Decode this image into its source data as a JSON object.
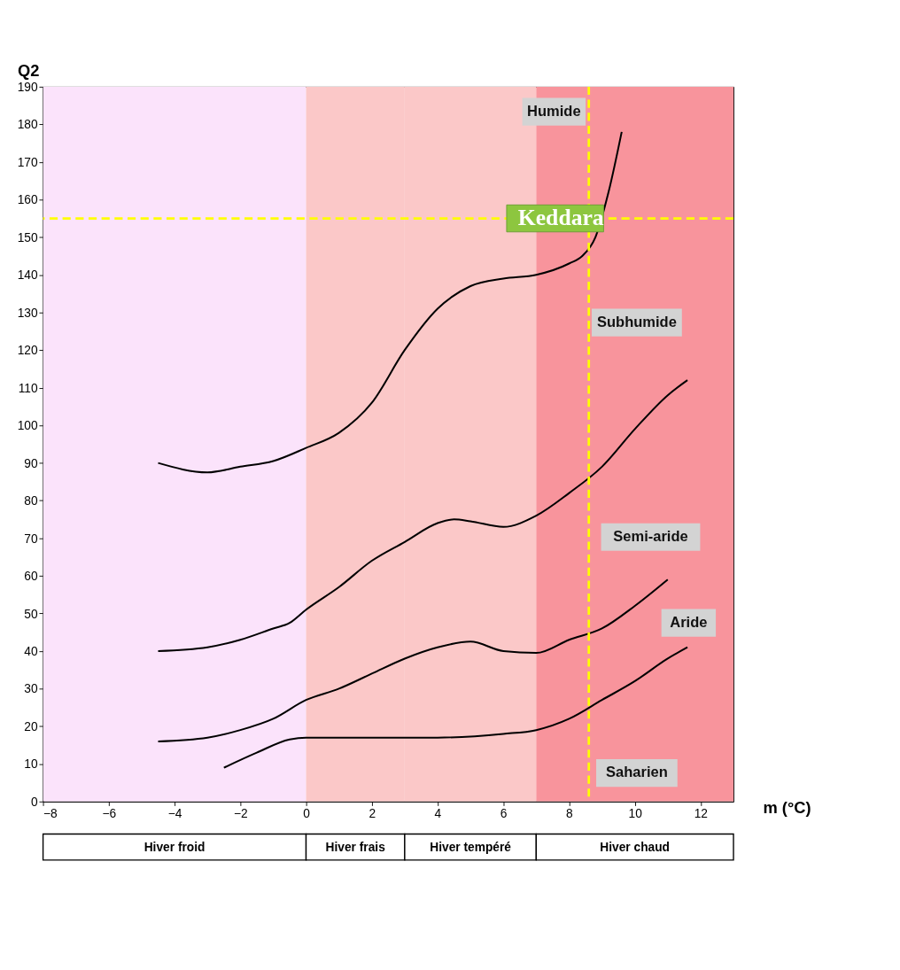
{
  "chart_data": {
    "type": "line",
    "xlabel": "m (°C)",
    "ylabel": "Q2",
    "xlim": [
      -8,
      13
    ],
    "xticks": [
      -8,
      -6,
      -4,
      -2,
      0,
      2,
      4,
      6,
      8,
      10,
      12
    ],
    "ylim": [
      0,
      190
    ],
    "yticks": [
      0,
      10,
      20,
      30,
      40,
      50,
      60,
      70,
      80,
      90,
      100,
      110,
      120,
      130,
      140,
      150,
      160,
      170,
      180,
      190
    ],
    "grid": false,
    "marker": "none",
    "line_style": "solid",
    "series": [
      {
        "color": "#000000",
        "x": [
          -4.5,
          -3,
          -2,
          -1,
          0,
          1,
          2,
          3,
          4,
          5,
          6,
          7,
          8,
          8.4,
          8.8,
          9.2,
          9.6
        ],
        "values": [
          90,
          87.5,
          89,
          90.5,
          94,
          98,
          106,
          120,
          131,
          137,
          139,
          140,
          143,
          145,
          150,
          162,
          178
        ]
      },
      {
        "color": "#000000",
        "x": [
          -4.5,
          -3,
          -2,
          -1,
          -0.5,
          0,
          1,
          2,
          3,
          4,
          4.5,
          5,
          6,
          7,
          8,
          9,
          10,
          11,
          11.6
        ],
        "values": [
          40,
          41,
          43,
          46,
          47.5,
          51,
          57,
          64,
          69,
          74,
          75,
          74.5,
          73,
          76,
          82,
          89,
          99,
          108,
          112
        ]
      },
      {
        "color": "#000000",
        "x": [
          -4.5,
          -3,
          -2,
          -1,
          0,
          1,
          2,
          3,
          4,
          5,
          6,
          7,
          8,
          9,
          10,
          11
        ],
        "values": [
          16,
          17,
          19,
          22,
          27,
          30,
          34,
          38,
          41,
          42.5,
          40,
          39.5,
          43,
          46,
          52,
          59
        ]
      },
      {
        "color": "#000000",
        "x": [
          -2.5,
          -1.5,
          -0.5,
          0,
          2,
          4,
          6,
          7,
          8,
          9,
          10,
          11,
          11.6
        ],
        "values": [
          9,
          13,
          16.5,
          17,
          17,
          17,
          18,
          19,
          22,
          27,
          32,
          38,
          41
        ]
      }
    ],
    "bands": [
      {
        "axis": "x",
        "from": -8,
        "to": 0,
        "color": "#fbe3fb"
      },
      {
        "axis": "x",
        "from": 0,
        "to": 3,
        "color": "#fbc8c8"
      },
      {
        "axis": "x",
        "from": 3,
        "to": 7,
        "color": "#fbc8c8"
      },
      {
        "axis": "x",
        "from": 7,
        "to": 13,
        "color": "#f8949c"
      }
    ],
    "ref_lines": [
      {
        "axis": "y",
        "value": 155,
        "color": "#ffff00",
        "line_style": "dashed"
      },
      {
        "axis": "x",
        "value": 8.6,
        "color": "#ffff00",
        "line_style": "dashed"
      }
    ],
    "annotations": [
      {
        "text": "Keddara",
        "x": 6.1,
        "y": 155
      },
      "Humide",
      "Subhumide",
      "Semi-aride",
      "Aride",
      "Saharien",
      "Hiver froid",
      "Hiver frais",
      "Hiver tempéré",
      "Hiver chaud"
    ]
  }
}
